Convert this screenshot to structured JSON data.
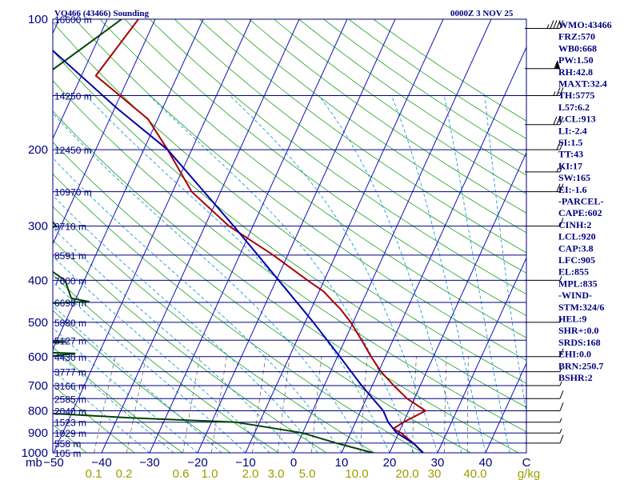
{
  "header": {
    "station": "VQ466 (43466) Sounding",
    "time": "0000Z  3 NOV 25"
  },
  "chart_data": {
    "type": "line",
    "title": "VQ466 (43466) Sounding",
    "xlabel": "",
    "ylabel": "mb",
    "pressure_levels": [
      100,
      200,
      300,
      400,
      500,
      600,
      700,
      800,
      900,
      1000
    ],
    "pressure_labels": [
      "100",
      "200",
      "300",
      "400",
      "500",
      "600",
      "700",
      "800",
      "900",
      "1000"
    ],
    "pressure_unit": "mb",
    "temperature_ticks": [
      -50,
      -40,
      -30,
      -20,
      -10,
      0,
      10,
      20,
      30,
      40
    ],
    "temperature_tick_labels": [
      "−50",
      "−40",
      "−30",
      "−20",
      "−10",
      "0",
      "10",
      "20",
      "30",
      "40"
    ],
    "temperature_corner_label": "C",
    "mixing_ratio_values": [
      0.1,
      0.2,
      0.6,
      1.0,
      2.0,
      3.0,
      5.0,
      10.0,
      20.0,
      30.0,
      40.0
    ],
    "mixing_ratio_labels": [
      "0.1",
      "0.2",
      "0.6",
      "1.0",
      "2.0",
      "3.0",
      "5.0",
      "10.0",
      "20.0",
      "30",
      "40.0"
    ],
    "mixing_ratio_unit": "g/kg",
    "heights": [
      {
        "p": 100,
        "label": "16600 m"
      },
      {
        "p": 150,
        "label": "14250 m"
      },
      {
        "p": 200,
        "label": "12450 m"
      },
      {
        "p": 250,
        "label": "10970 m"
      },
      {
        "p": 300,
        "label": "9710 m"
      },
      {
        "p": 350,
        "label": "8591 m"
      },
      {
        "p": 400,
        "label": "7600 m"
      },
      {
        "p": 450,
        "label": "6698 m"
      },
      {
        "p": 500,
        "label": "5880 m"
      },
      {
        "p": 550,
        "label": "5127 m"
      },
      {
        "p": 600,
        "label": "4430 m"
      },
      {
        "p": 650,
        "label": "3777 m"
      },
      {
        "p": 700,
        "label": "3166 m"
      },
      {
        "p": 750,
        "label": "2585 m"
      },
      {
        "p": 800,
        "label": "2040 m"
      },
      {
        "p": 850,
        "label": "1523 m"
      },
      {
        "p": 900,
        "label": "1029 m"
      },
      {
        "p": 950,
        "label": "558 m"
      },
      {
        "p": 1000,
        "label": "105 m"
      }
    ],
    "series": [
      {
        "color": "#aa0000",
        "points": [
          [
            100,
            -73.5
          ],
          [
            135,
            -77
          ],
          [
            170,
            -62
          ],
          [
            200,
            -55
          ],
          [
            250,
            -46
          ],
          [
            300,
            -35
          ],
          [
            350,
            -23
          ],
          [
            400,
            -13.5
          ],
          [
            425,
            -9
          ],
          [
            445,
            -6.5
          ],
          [
            465,
            -4
          ],
          [
            500,
            -0.5
          ],
          [
            550,
            3.5
          ],
          [
            600,
            7
          ],
          [
            650,
            10.5
          ],
          [
            700,
            14.5
          ],
          [
            750,
            18.5
          ],
          [
            800,
            23.5
          ],
          [
            850,
            20
          ],
          [
            880,
            18.5
          ],
          [
            900,
            20.5
          ],
          [
            950,
            24
          ],
          [
            1000,
            27
          ]
        ]
      },
      {
        "color": "#004400",
        "points": [
          [
            100,
            -77
          ],
          [
            140,
            -89
          ],
          [
            170,
            -97
          ],
          [
            190,
            -103
          ],
          [
            230,
            -86
          ],
          [
            260,
            -78
          ],
          [
            300,
            -71
          ],
          [
            330,
            -79
          ],
          [
            350,
            -74
          ],
          [
            400,
            -64
          ],
          [
            440,
            -61
          ],
          [
            448,
            -57
          ],
          [
            458,
            -77
          ],
          [
            475,
            -83
          ],
          [
            490,
            -83
          ],
          [
            500,
            -80
          ],
          [
            520,
            -77
          ],
          [
            530,
            -85
          ],
          [
            538,
            -87
          ],
          [
            545,
            -75
          ],
          [
            555,
            -58
          ],
          [
            565,
            -72
          ],
          [
            580,
            -74
          ],
          [
            590,
            -55
          ],
          [
            605,
            -63
          ],
          [
            615,
            -59
          ],
          [
            630,
            -71
          ],
          [
            660,
            -70
          ],
          [
            700,
            -73
          ],
          [
            760,
            -69
          ],
          [
            790,
            -73
          ],
          [
            830,
            -38
          ],
          [
            850,
            -15
          ],
          [
            900,
            0
          ],
          [
            950,
            8
          ],
          [
            1000,
            16.5
          ]
        ]
      },
      {
        "color": "#0000aa",
        "points": [
          [
            115,
            -90
          ],
          [
            160,
            -69.7
          ],
          [
            200,
            -55
          ],
          [
            300,
            -34
          ],
          [
            400,
            -19.5
          ],
          [
            500,
            -8.3
          ],
          [
            600,
            0.5
          ],
          [
            700,
            7.8
          ],
          [
            800,
            14.7
          ],
          [
            850,
            16.8
          ],
          [
            900,
            19.6
          ],
          [
            950,
            24
          ],
          [
            1000,
            27
          ]
        ]
      }
    ],
    "indices": [
      "WMO:43466",
      "FRZ:570",
      "WB0:668",
      "PW:1.50",
      "RH:42.8",
      "MAXT:32.4",
      "TH:5775",
      "L57:6.2",
      "LCL:913",
      "LI:-2.4",
      "SI:1.5",
      "TT:43",
      "KI:17",
      "SW:165",
      "EI:-1.6",
      "-PARCEL-",
      "CAPE:602",
      "CINH:2",
      "LCL:920",
      "CAP:3.8",
      "LFC:905",
      "EL:855",
      "MPL:835",
      "-WIND-",
      "STM:324/6",
      "HEL:9",
      "SHR+:0.0",
      "SRDS:168",
      "EHI:0.0",
      "BRN:250.7",
      "BSHR:2"
    ],
    "wind_barbs": [
      {
        "p": 105,
        "spd": 45
      },
      {
        "p": 130,
        "spd": 60
      },
      {
        "p": 150,
        "spd": 25
      },
      {
        "p": 175,
        "spd": 30
      },
      {
        "p": 200,
        "spd": 20
      },
      {
        "p": 225,
        "spd": 15
      },
      {
        "p": 250,
        "spd": 20
      },
      {
        "p": 300,
        "spd": 10
      },
      {
        "p": 400,
        "spd": 5
      },
      {
        "p": 500,
        "spd": 5
      },
      {
        "p": 600,
        "spd": 10
      },
      {
        "p": 650,
        "spd": 5
      },
      {
        "p": 700,
        "spd": 5
      },
      {
        "p": 750,
        "spd": 10
      },
      {
        "p": 800,
        "spd": 10
      },
      {
        "p": 850,
        "spd": 5
      },
      {
        "p": 900,
        "spd": 5
      },
      {
        "p": 950,
        "spd": 10
      }
    ],
    "colors": {
      "isobar": "#000080",
      "isotherm": "#1010c0",
      "dry_adiabat": "#20a020",
      "moist_adiabat": "#0090d0",
      "mixing_ratio": "#707070",
      "temperature": "#aa0000",
      "dewpoint": "#004400",
      "parcel": "#0000aa",
      "text": "#000080",
      "mixing_label": "#9c9c00"
    }
  }
}
